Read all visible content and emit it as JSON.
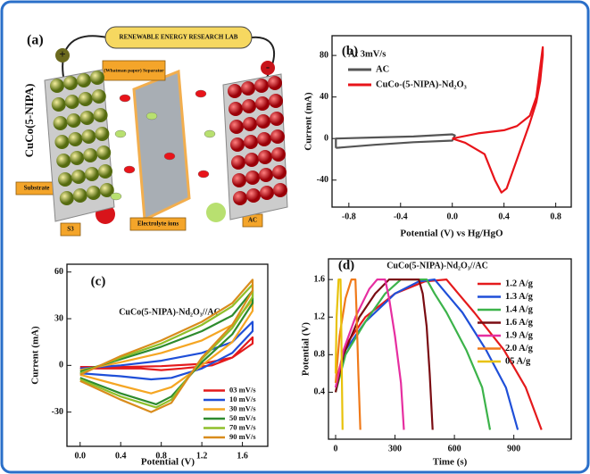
{
  "diagram": {
    "label": "(a)",
    "banner": "RENEWABLE ENERGY RESEARCH LAB",
    "separator": "(Whatman paper) Separator",
    "electrode_left": "CuCo(5-NIPA)",
    "substrate": "Substrate",
    "s3": "S3",
    "electrolyte": "Electrolyte ions",
    "ac": "AC",
    "plus": "+",
    "minus": "-"
  },
  "chart_data": [
    {
      "type": "line",
      "label": "(b)",
      "x_label": "Potential (V) vs Hg/HgO",
      "y_label": "Current (mA)",
      "legend_title": "At 3mV/s",
      "legend": "upper left",
      "xlim": [
        -0.93,
        0.92
      ],
      "ylim": [
        -66,
        99
      ],
      "xticks": [
        -0.8,
        -0.4,
        {
          "value": 0,
          "label": "0.0"
        },
        0.4,
        0.8
      ],
      "yticks": [
        -40,
        0,
        40,
        80
      ],
      "series": [
        {
          "name": "AC",
          "color": "#555555",
          "x": [
            -0.9,
            -0.6,
            -0.3,
            0,
            0.02,
            0,
            -0.3,
            -0.6,
            -0.9,
            -0.9
          ],
          "values": [
            -9,
            -6,
            -3.5,
            -2,
            3,
            4,
            2,
            1,
            0,
            -9
          ]
        },
        {
          "name": "CuCo-(5-NIPA)-Nd₂O₃",
          "color": "#e8141a",
          "x": [
            0,
            0.2,
            0.4,
            0.5,
            0.6,
            0.65,
            0.7,
            0.7,
            0.68,
            0.65,
            0.6,
            0.5,
            0.42,
            0.38,
            0.33,
            0.25,
            0.1,
            0
          ],
          "values": [
            0,
            5,
            8,
            12,
            22,
            40,
            88,
            80,
            55,
            35,
            15,
            -20,
            -48,
            -52,
            -40,
            -15,
            -4,
            0
          ]
        }
      ]
    },
    {
      "type": "line",
      "label": "(c)",
      "annotation": "CuCo(5-NIPA)-Nd₂O₃//AC",
      "x_label": "Potential (V)",
      "y_label": "Current (mA)",
      "legend": "lower right",
      "xlim": [
        -0.13,
        1.85
      ],
      "ylim": [
        -52,
        65
      ],
      "xticks": [
        {
          "value": 0,
          "label": "0.0"
        },
        0.4,
        0.8,
        1.2,
        1.6
      ],
      "yticks": [
        -30,
        0,
        30,
        60
      ],
      "series": [
        {
          "name": "03 mV/s",
          "color": "#e41a1c",
          "x": [
            0,
            0.4,
            0.8,
            1.2,
            1.5,
            1.7,
            1.7,
            1.5,
            1.3,
            1.0,
            0.8,
            0.6,
            0.3,
            0
          ],
          "values": [
            -1,
            -1,
            -0.5,
            1,
            5,
            18,
            14,
            5,
            0,
            -2,
            -3,
            -2,
            -2,
            -2
          ]
        },
        {
          "name": "10 mV/s",
          "color": "#1f4fd8",
          "x": [
            0,
            0.4,
            0.8,
            1.2,
            1.5,
            1.7,
            1.7,
            1.5,
            1.2,
            0.9,
            0.7,
            0.4,
            0
          ],
          "values": [
            -2,
            0,
            3,
            8,
            15,
            28,
            22,
            8,
            -2,
            -8,
            -9,
            -7,
            -5
          ]
        },
        {
          "name": "30 mV/s",
          "color": "#f5a623",
          "x": [
            0,
            0.4,
            0.8,
            1.2,
            1.5,
            1.7,
            1.7,
            1.5,
            1.2,
            0.9,
            0.7,
            0.4,
            0
          ],
          "values": [
            -3,
            2,
            8,
            16,
            26,
            42,
            35,
            15,
            0,
            -14,
            -18,
            -13,
            -6
          ]
        },
        {
          "name": "50 mV/s",
          "color": "#2e8b2e",
          "x": [
            0,
            0.4,
            0.8,
            1.2,
            1.5,
            1.7,
            1.7,
            1.5,
            1.2,
            0.9,
            0.75,
            0.4,
            0
          ],
          "values": [
            -4,
            4,
            12,
            22,
            32,
            48,
            40,
            20,
            2,
            -20,
            -25,
            -18,
            -8
          ]
        },
        {
          "name": "70 mV/s",
          "color": "#8fbf2a",
          "x": [
            0,
            0.4,
            0.8,
            1.2,
            1.5,
            1.7,
            1.7,
            1.5,
            1.2,
            0.9,
            0.75,
            0.4,
            0
          ],
          "values": [
            -5,
            5,
            14,
            26,
            38,
            52,
            44,
            24,
            4,
            -22,
            -27,
            -20,
            -9
          ]
        },
        {
          "name": "90 mV/s",
          "color": "#d98c1c",
          "x": [
            0,
            0.4,
            0.8,
            1.2,
            1.5,
            1.7,
            1.7,
            1.5,
            1.2,
            0.9,
            0.7,
            0.4,
            0
          ],
          "values": [
            -6,
            6,
            16,
            28,
            40,
            55,
            48,
            26,
            5,
            -24,
            -30,
            -22,
            -10
          ]
        }
      ]
    },
    {
      "type": "line",
      "label": "(d)",
      "annotation": "CuCo(5-NIPA)-Nd₂O₃//AC",
      "x_label": "Time (s)",
      "y_label": "Potential (V)",
      "legend": "upper right",
      "xlim": [
        -36,
        1190
      ],
      "ylim": [
        -0.1,
        1.82
      ],
      "xticks": [
        0,
        300,
        600,
        900
      ],
      "yticks": [
        0.4,
        0.8,
        1.2,
        1.6
      ],
      "series": [
        {
          "name": "1.2 A/g",
          "color": "#e41a1c",
          "x": [
            0,
            50,
            150,
            300,
            450,
            560,
            620,
            700,
            850,
            960,
            1040
          ],
          "values": [
            0.5,
            0.9,
            1.2,
            1.45,
            1.58,
            1.6,
            1.45,
            1.25,
            0.85,
            0.45,
            0
          ]
        },
        {
          "name": "1.3 A/g",
          "color": "#1f4fd8",
          "x": [
            0,
            50,
            150,
            300,
            420,
            500,
            560,
            640,
            760,
            860,
            920
          ],
          "values": [
            0.45,
            0.85,
            1.15,
            1.45,
            1.58,
            1.6,
            1.45,
            1.25,
            0.85,
            0.45,
            0
          ]
        },
        {
          "name": "1.4 A/g",
          "color": "#3cb34a",
          "x": [
            0,
            50,
            150,
            250,
            330,
            460,
            500,
            560,
            660,
            740,
            780
          ],
          "values": [
            0.4,
            0.8,
            1.15,
            1.45,
            1.6,
            1.6,
            1.45,
            1.25,
            0.85,
            0.45,
            0
          ]
        },
        {
          "name": "1.6 A/g",
          "color": "#7a0c12",
          "x": [
            0,
            40,
            120,
            200,
            270,
            420,
            440,
            460,
            475,
            490
          ],
          "values": [
            0.4,
            0.8,
            1.2,
            1.45,
            1.6,
            1.6,
            1.45,
            1.1,
            0.6,
            0
          ]
        },
        {
          "name": "1.9 A/g",
          "color": "#e62ea0",
          "x": [
            0,
            40,
            100,
            170,
            210,
            250,
            270,
            300,
            330,
            345
          ],
          "values": [
            0.45,
            0.85,
            1.2,
            1.5,
            1.6,
            1.6,
            1.4,
            1.0,
            0.5,
            0
          ]
        },
        {
          "name": "2.0 A/g",
          "color": "#f07a1a",
          "x": [
            0,
            20,
            50,
            80,
            100,
            105,
            115,
            125
          ],
          "values": [
            0.5,
            1.0,
            1.4,
            1.6,
            1.6,
            1.3,
            0.6,
            0
          ]
        },
        {
          "name": "05 A/g",
          "color": "#e8c20a",
          "x": [
            0,
            5,
            15,
            25,
            28,
            32,
            35
          ],
          "values": [
            0.6,
            1.2,
            1.6,
            1.6,
            1.2,
            0.5,
            0
          ]
        }
      ]
    }
  ]
}
